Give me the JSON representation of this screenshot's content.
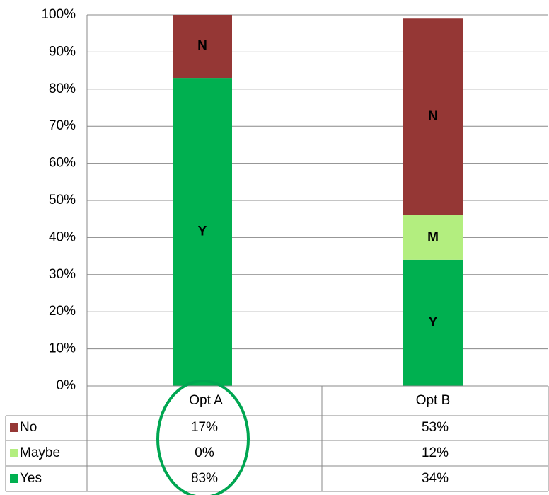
{
  "chart_data": {
    "type": "stacked_bar",
    "categories": [
      "Opt A",
      "Opt B"
    ],
    "series": [
      {
        "name": "No",
        "label": "N",
        "color": "#953735",
        "values": [
          17,
          53
        ],
        "value_labels": [
          "17%",
          "53%"
        ]
      },
      {
        "name": "Maybe",
        "label": "M",
        "color": "#b3ee7f",
        "values": [
          0,
          12
        ],
        "value_labels": [
          "0%",
          "12%"
        ]
      },
      {
        "name": "Yes",
        "label": "Y",
        "color": "#00b050",
        "values": [
          83,
          34
        ],
        "value_labels": [
          "83%",
          "34%"
        ]
      }
    ],
    "ylim": [
      0,
      100
    ],
    "yticks": [
      {
        "value": 0,
        "label": "0%"
      },
      {
        "value": 10,
        "label": "10%"
      },
      {
        "value": 20,
        "label": "20%"
      },
      {
        "value": 30,
        "label": "30%"
      },
      {
        "value": 40,
        "label": "40%"
      },
      {
        "value": 50,
        "label": "50%"
      },
      {
        "value": 60,
        "label": "60%"
      },
      {
        "value": 70,
        "label": "70%"
      },
      {
        "value": 80,
        "label": "80%"
      },
      {
        "value": 90,
        "label": "90%"
      },
      {
        "value": 100,
        "label": "100%"
      }
    ],
    "grid": true
  }
}
